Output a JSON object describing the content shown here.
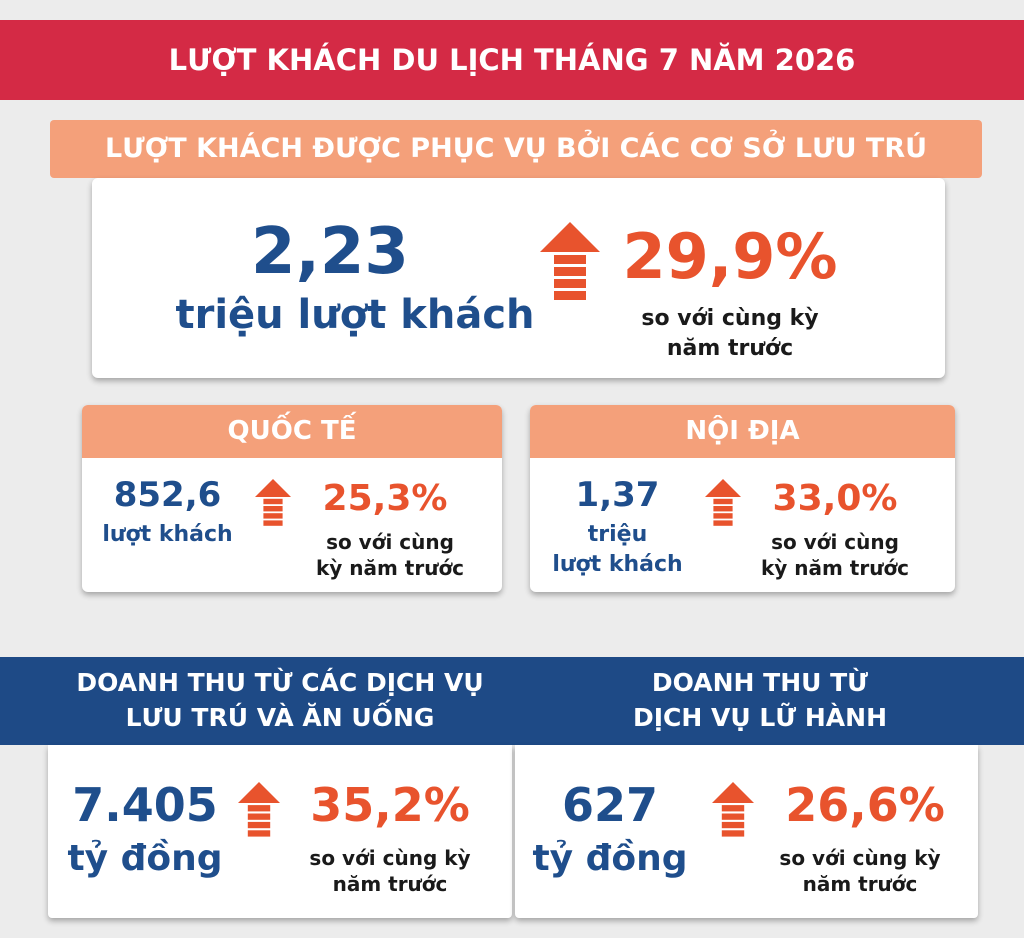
{
  "title": "LƯỢT KHÁCH DU LỊCH THÁNG 7 NĂM 2026",
  "accommodation": {
    "header": "LƯỢT KHÁCH ĐƯỢC PHỤC VỤ BỞI CÁC CƠ SỞ LƯU TRÚ",
    "value": "2,23",
    "unit": "triệu lượt khách",
    "change": "29,9%",
    "comparison": [
      "so với cùng kỳ",
      "năm trước"
    ]
  },
  "international": {
    "header": "QUỐC TẾ",
    "value": "852,6",
    "unit": [
      "lượt khách"
    ],
    "change": "25,3%",
    "comparison": [
      "so với cùng",
      "kỳ năm trước"
    ]
  },
  "domestic": {
    "header": "NỘI ĐỊA",
    "value": "1,37",
    "unit": [
      "triệu",
      "lượt khách"
    ],
    "change": "33,0%",
    "comparison": [
      "so với cùng",
      "kỳ năm trước"
    ]
  },
  "revenue_lodging": {
    "header": [
      "DOANH THU TỪ CÁC DỊCH VỤ",
      "LƯU TRÚ VÀ ĂN UỐNG"
    ],
    "value": "7.405",
    "unit": "tỷ đồng",
    "change": "35,2%",
    "comparison": [
      "so với cùng kỳ",
      "năm trước"
    ]
  },
  "revenue_travel": {
    "header": [
      "DOANH THU TỪ",
      "DỊCH VỤ LỮ HÀNH"
    ],
    "value": "627",
    "unit": "tỷ đồng",
    "change": "26,6%",
    "comparison": [
      "so với cùng kỳ",
      "năm trước"
    ]
  }
}
